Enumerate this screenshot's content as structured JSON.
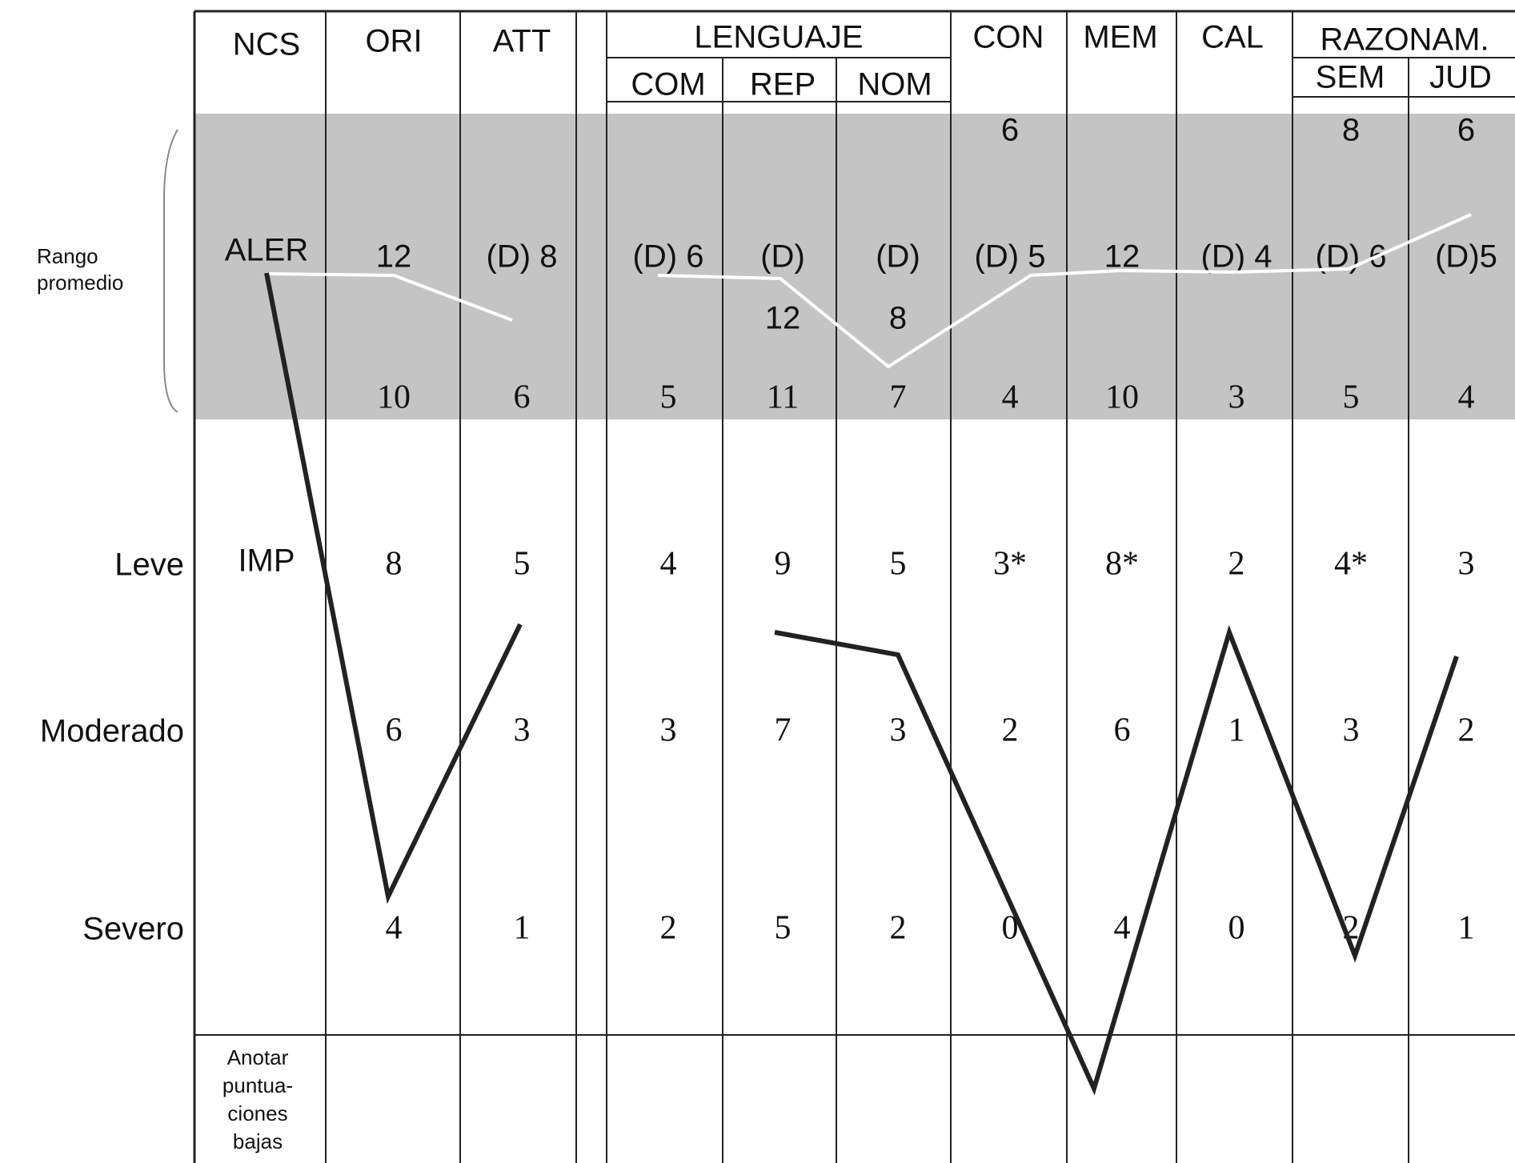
{
  "chart_data": {
    "type": "line",
    "columns": [
      {
        "key": "ncs",
        "header": "NCS"
      },
      {
        "key": "ori",
        "header": "ORI"
      },
      {
        "key": "att",
        "header": "ATT"
      },
      {
        "key": "com",
        "header": "COM"
      },
      {
        "key": "rep",
        "header": "REP"
      },
      {
        "key": "nom",
        "header": "NOM"
      },
      {
        "key": "con",
        "header": "CON"
      },
      {
        "key": "mem",
        "header": "MEM"
      },
      {
        "key": "cal",
        "header": "CAL"
      },
      {
        "key": "sem",
        "header": "SEM"
      },
      {
        "key": "jud",
        "header": "JUD"
      }
    ],
    "group_headers": {
      "lenguaje": "LENGUAJE",
      "razonamiento": "RAZONAM."
    },
    "row_labels": {
      "average_range": "Rango promedio",
      "leve": "Leve",
      "moderado": "Moderado",
      "severo": "Severo"
    },
    "ncs_levels": {
      "aler": "ALER",
      "imp": "IMP",
      "low_scores_note": "Anotar puntua- ciones bajas"
    },
    "scores": {
      "top": [
        "",
        "",
        "",
        "",
        "",
        "6",
        "",
        "",
        "8",
        "6"
      ],
      "aler": [
        "12",
        "(D) 8",
        "(D) 6",
        "(D)",
        "(D)",
        "(D) 5",
        "12",
        "(D) 4",
        "(D) 6",
        "(D)5"
      ],
      "aler_sub": [
        "",
        "",
        "",
        "12",
        "8",
        "",
        "",
        "",
        "",
        ""
      ],
      "avg_low": [
        "10",
        "6",
        "5",
        "11",
        "7",
        "4",
        "10",
        "3",
        "5",
        "4"
      ],
      "leve": [
        "8",
        "5",
        "4",
        "9",
        "5",
        "3*",
        "8*",
        "2",
        "4*",
        "3"
      ],
      "moderado": [
        "6",
        "3",
        "3",
        "7",
        "3",
        "2",
        "6",
        "1",
        "3",
        "2"
      ],
      "severo": [
        "4",
        "1",
        "2",
        "5",
        "2",
        "0",
        "4",
        "0",
        "2",
        "1"
      ]
    },
    "series": [
      {
        "color": "#ffffff",
        "segments": [
          [
            [
              "NCS",
              "ALER"
            ],
            [
              "ORI",
              "ALER"
            ],
            [
              "ATT",
              "below ALER"
            ]
          ],
          [
            [
              "COM",
              "ALER"
            ],
            [
              "REP",
              "ALER"
            ],
            [
              "NOM",
              "avg_low"
            ],
            [
              "CON",
              "ALER"
            ],
            [
              "MEM",
              "ALER"
            ],
            [
              "CAL",
              "ALER"
            ],
            [
              "SEM",
              "ALER"
            ],
            [
              "JUD",
              "top"
            ]
          ]
        ]
      },
      {
        "color": "#222222",
        "segments": [
          [
            [
              "NCS",
              "ALER"
            ],
            [
              "ORI",
              "Severo"
            ],
            [
              "ATT",
              "Leve"
            ]
          ],
          [
            [
              "REP",
              "Leve"
            ],
            [
              "NOM",
              "Leve"
            ],
            [
              "MEM",
              "Anotar puntuaciones bajas"
            ],
            [
              "CAL",
              "Leve"
            ],
            [
              "SEM",
              "Severo"
            ],
            [
              "JUD",
              "Leve"
            ]
          ]
        ]
      }
    ],
    "shaded_band": "Rango promedio"
  }
}
